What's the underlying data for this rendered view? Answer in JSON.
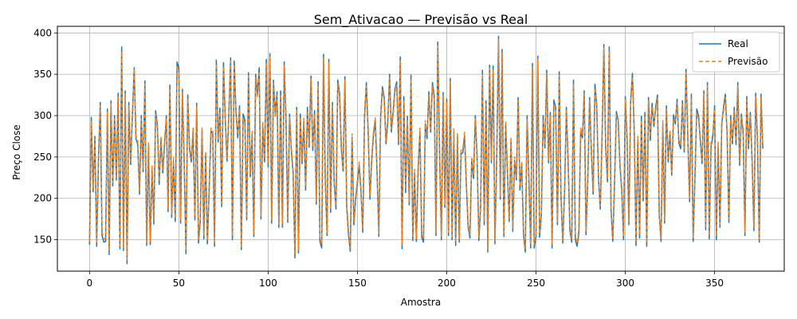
{
  "chart_data": {
    "type": "line",
    "title": "Sem_Ativacao — Previsão vs Real",
    "xlabel": "Amostra",
    "ylabel": "Preço Close",
    "xlim": [
      -18,
      389
    ],
    "ylim": [
      112,
      408
    ],
    "xticks": [
      0,
      50,
      100,
      150,
      200,
      250,
      300,
      350
    ],
    "yticks": [
      150,
      200,
      250,
      300,
      350,
      400
    ],
    "grid": true,
    "legend_position": "top-right",
    "series": [
      {
        "name": "Real",
        "color": "#1f77b4",
        "style": "solid",
        "values": [
          144,
          298,
          208,
          275,
          142,
          245,
          316,
          155,
          147,
          148,
          308,
          132,
          318,
          215,
          300,
          222,
          327,
          139,
          383,
          137,
          330,
          121,
          316,
          241,
          300,
          358,
          272,
          265,
          205,
          300,
          232,
          342,
          143,
          263,
          144,
          236,
          169,
          306,
          289,
          217,
          271,
          231,
          265,
          300,
          184,
          337,
          177,
          245,
          172,
          365,
          358,
          170,
          332,
          244,
          133,
          325,
          260,
          244,
          281,
          174,
          315,
          146,
          172,
          282,
          151,
          253,
          145,
          212,
          281,
          279,
          142,
          367,
          268,
          309,
          190,
          364,
          296,
          245,
          302,
          370,
          150,
          366,
          305,
          273,
          312,
          138,
          302,
          295,
          174,
          352,
          226,
          277,
          154,
          350,
          326,
          358,
          175,
          288,
          244,
          368,
          238,
          375,
          170,
          343,
          302,
          329,
          165,
          330,
          165,
          365,
          296,
          171,
          302,
          258,
          231,
          128,
          310,
          134,
          302,
          242,
          293,
          210,
          310,
          262,
          348,
          258,
          306,
          193,
          341,
          148,
          140,
          374,
          221,
          155,
          368,
          183,
          316,
          218,
          187,
          343,
          327,
          260,
          233,
          347,
          190,
          156,
          136,
          274,
          168,
          199,
          219,
          240,
          208,
          159,
          300,
          340,
          281,
          199,
          246,
          277,
          294,
          231,
          154,
          300,
          335,
          322,
          266,
          292,
          350,
          280,
          305,
          332,
          341,
          265,
          371,
          139,
          323,
          207,
          299,
          192,
          349,
          149,
          231,
          148,
          235,
          281,
          153,
          147,
          290,
          272,
          329,
          280,
          340,
          325,
          155,
          389,
          255,
          150,
          328,
          189,
          320,
          155,
          345,
          150,
          280,
          143,
          275,
          147,
          254,
          255,
          276,
          215,
          165,
          152,
          246,
          224,
          300,
          250,
          149,
          190,
          355,
          168,
          318,
          135,
          361,
          243,
          360,
          145,
          247,
          396,
          199,
          380,
          154,
          290,
          232,
          172,
          270,
          160,
          246,
          222,
          322,
          210,
          241,
          156,
          135,
          300,
          225,
          140,
          363,
          140,
          154,
          372,
          153,
          180,
          300,
          261,
          355,
          243,
          304,
          140,
          319,
          310,
          168,
          353,
          201,
          146,
          209,
          310,
          241,
          161,
          147,
          343,
          150,
          142,
          158,
          281,
          273,
          330,
          156,
          222,
          322,
          256,
          205,
          338,
          313,
          223,
          187,
          275,
          386,
          262,
          220,
          383,
          186,
          148,
          220,
          305,
          294,
          240,
          209,
          150,
          323,
          271,
          168,
          318,
          351,
          281,
          143,
          271,
          152,
          299,
          197,
          304,
          142,
          322,
          270,
          315,
          287,
          310,
          325,
          180,
          148,
          290,
          170,
          312,
          244,
          279,
          228,
          301,
          290,
          320,
          267,
          260,
          318,
          256,
          356,
          274,
          196,
          326,
          148,
          225,
          308,
          300,
          270,
          242,
          330,
          162,
          340,
          151,
          263,
          274,
          312,
          150,
          264,
          165,
          289,
          310,
          326,
          278,
          171,
          300,
          266,
          310,
          265,
          340,
          240,
          302,
          279,
          155,
          323,
          260,
          304,
          245,
          161,
          327,
          270,
          147,
          326,
          260
        ]
      },
      {
        "name": "Previsão",
        "color": "#ff7f0e",
        "style": "dashed",
        "values": [
          148,
          294,
          212,
          272,
          146,
          249,
          312,
          159,
          151,
          152,
          304,
          136,
          314,
          219,
          296,
          226,
          323,
          143,
          378,
          141,
          326,
          126,
          312,
          245,
          296,
          357,
          276,
          269,
          209,
          296,
          236,
          338,
          147,
          267,
          148,
          240,
          173,
          302,
          285,
          221,
          275,
          235,
          269,
          296,
          188,
          333,
          181,
          249,
          176,
          361,
          354,
          174,
          328,
          248,
          137,
          321,
          264,
          248,
          285,
          178,
          311,
          150,
          176,
          286,
          155,
          257,
          149,
          216,
          285,
          283,
          146,
          363,
          272,
          305,
          194,
          360,
          300,
          249,
          298,
          366,
          154,
          362,
          301,
          277,
          308,
          142,
          298,
          291,
          178,
          348,
          230,
          281,
          158,
          346,
          322,
          354,
          179,
          292,
          248,
          364,
          242,
          371,
          174,
          339,
          298,
          325,
          169,
          326,
          169,
          361,
          300,
          175,
          298,
          262,
          235,
          132,
          306,
          138,
          298,
          246,
          297,
          214,
          306,
          266,
          344,
          262,
          302,
          197,
          337,
          152,
          144,
          370,
          225,
          159,
          364,
          187,
          312,
          222,
          191,
          339,
          323,
          264,
          237,
          343,
          194,
          160,
          140,
          278,
          172,
          203,
          223,
          244,
          212,
          163,
          296,
          336,
          285,
          203,
          250,
          281,
          298,
          235,
          158,
          296,
          331,
          318,
          270,
          296,
          346,
          284,
          301,
          328,
          337,
          269,
          367,
          143,
          319,
          211,
          295,
          196,
          345,
          153,
          235,
          152,
          239,
          285,
          157,
          151,
          294,
          276,
          325,
          284,
          336,
          321,
          159,
          384,
          259,
          154,
          324,
          193,
          316,
          159,
          341,
          154,
          284,
          147,
          279,
          151,
          258,
          259,
          280,
          219,
          169,
          156,
          250,
          228,
          296,
          254,
          153,
          194,
          351,
          172,
          314,
          139,
          357,
          247,
          356,
          149,
          251,
          392,
          203,
          376,
          158,
          294,
          236,
          176,
          274,
          164,
          250,
          226,
          318,
          214,
          245,
          160,
          139,
          296,
          229,
          144,
          359,
          144,
          158,
          368,
          157,
          184,
          296,
          265,
          351,
          247,
          300,
          144,
          315,
          306,
          172,
          349,
          205,
          150,
          213,
          306,
          245,
          165,
          151,
          339,
          154,
          146,
          162,
          285,
          277,
          326,
          160,
          226,
          318,
          260,
          209,
          334,
          309,
          227,
          191,
          279,
          382,
          266,
          224,
          379,
          190,
          152,
          224,
          301,
          298,
          244,
          213,
          154,
          319,
          275,
          172,
          314,
          347,
          285,
          147,
          275,
          156,
          295,
          201,
          300,
          146,
          318,
          274,
          311,
          291,
          306,
          321,
          184,
          152,
          294,
          174,
          308,
          248,
          283,
          232,
          297,
          294,
          316,
          271,
          264,
          314,
          260,
          352,
          278,
          200,
          322,
          152,
          229,
          304,
          296,
          274,
          246,
          326,
          166,
          336,
          155,
          267,
          278,
          308,
          154,
          268,
          169,
          293,
          306,
          322,
          282,
          175,
          296,
          270,
          306,
          269,
          336,
          244,
          298,
          283,
          159,
          319,
          264,
          300,
          249,
          165,
          323,
          274,
          151,
          322,
          264
        ]
      }
    ]
  }
}
